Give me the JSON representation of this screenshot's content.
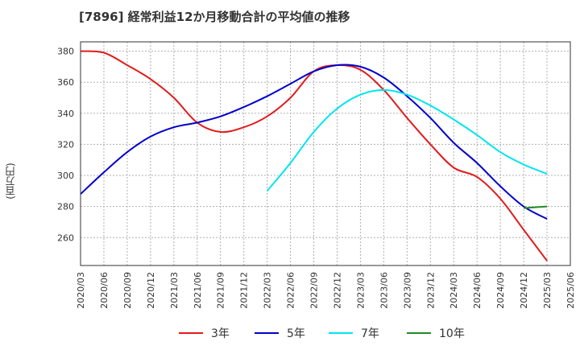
{
  "title": "[7896]  経常利益12か月移動合計の平均値の推移",
  "ylabel": "(百万円)",
  "chart_data": {
    "type": "line",
    "x": [
      "2020/03",
      "2020/06",
      "2020/09",
      "2020/12",
      "2021/03",
      "2021/06",
      "2021/09",
      "2021/12",
      "2022/03",
      "2022/06",
      "2022/09",
      "2022/12",
      "2023/03",
      "2023/06",
      "2023/09",
      "2023/12",
      "2024/03",
      "2024/06",
      "2024/09",
      "2024/12",
      "2025/03",
      "2025/06"
    ],
    "ylim": [
      242,
      386
    ],
    "yticks": [
      260,
      280,
      300,
      320,
      340,
      360,
      380
    ],
    "grid": true,
    "legend_position": "bottom",
    "series": [
      {
        "name": "3年",
        "color": "#e31a1c",
        "values": [
          380,
          379,
          371,
          362,
          350,
          334,
          328,
          331,
          338,
          350,
          367,
          371,
          368,
          355,
          337,
          320,
          305,
          299,
          285,
          265,
          245,
          null
        ]
      },
      {
        "name": "5年",
        "color": "#0000cc",
        "values": [
          288,
          302,
          315,
          325,
          331,
          334,
          338,
          344,
          351,
          359,
          367,
          371,
          370,
          363,
          351,
          337,
          321,
          308,
          293,
          280,
          272,
          null
        ]
      },
      {
        "name": "7年",
        "color": "#00e5ee",
        "values": [
          null,
          null,
          null,
          null,
          null,
          null,
          null,
          null,
          290,
          308,
          328,
          343,
          352,
          355,
          352,
          345,
          336,
          326,
          315,
          307,
          301,
          null
        ]
      },
      {
        "name": "10年",
        "color": "#228b22",
        "values": [
          null,
          null,
          null,
          null,
          null,
          null,
          null,
          null,
          null,
          null,
          null,
          null,
          null,
          null,
          null,
          null,
          null,
          null,
          null,
          279,
          280,
          null
        ]
      }
    ]
  }
}
